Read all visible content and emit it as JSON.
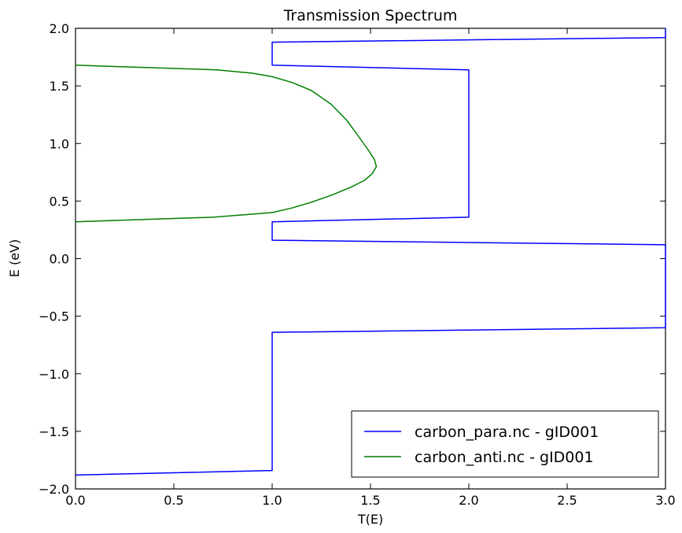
{
  "chart_data": {
    "type": "line",
    "title": "Transmission Spectrum",
    "xlabel": "T(E)",
    "ylabel": "E (eV)",
    "xlim": [
      0.0,
      3.0
    ],
    "ylim": [
      -2.0,
      2.0
    ],
    "xticks": [
      "0.0",
      "0.5",
      "1.0",
      "1.5",
      "2.0",
      "2.5",
      "3.0"
    ],
    "yticks": [
      "−2.0",
      "−1.5",
      "−1.0",
      "−0.5",
      "0.0",
      "0.5",
      "1.0",
      "1.5",
      "2.0"
    ],
    "grid": false,
    "legend_position": "lower-right",
    "series": [
      {
        "name": "carbon_para.nc - gID001",
        "color": "#0000ff",
        "points": [
          [
            0.0,
            -1.88
          ],
          [
            1.0,
            -1.84
          ],
          [
            1.0,
            -0.64
          ],
          [
            3.0,
            -0.6
          ],
          [
            3.0,
            0.12
          ],
          [
            1.0,
            0.16
          ],
          [
            1.0,
            0.32
          ],
          [
            2.0,
            0.36
          ],
          [
            2.0,
            1.64
          ],
          [
            1.0,
            1.68
          ],
          [
            1.0,
            1.88
          ],
          [
            3.0,
            1.92
          ],
          [
            3.0,
            2.0
          ]
        ]
      },
      {
        "name": "carbon_anti.nc - gID001",
        "color": "#008000",
        "points": [
          [
            0.0,
            0.32
          ],
          [
            0.7,
            0.36
          ],
          [
            1.0,
            0.4
          ],
          [
            1.1,
            0.44
          ],
          [
            1.2,
            0.49
          ],
          [
            1.3,
            0.55
          ],
          [
            1.4,
            0.62
          ],
          [
            1.47,
            0.68
          ],
          [
            1.51,
            0.74
          ],
          [
            1.53,
            0.8
          ],
          [
            1.52,
            0.86
          ],
          [
            1.49,
            0.94
          ],
          [
            1.44,
            1.06
          ],
          [
            1.38,
            1.2
          ],
          [
            1.3,
            1.34
          ],
          [
            1.2,
            1.46
          ],
          [
            1.1,
            1.53
          ],
          [
            1.0,
            1.58
          ],
          [
            0.9,
            1.61
          ],
          [
            0.72,
            1.64
          ],
          [
            0.0,
            1.68
          ]
        ]
      }
    ]
  }
}
